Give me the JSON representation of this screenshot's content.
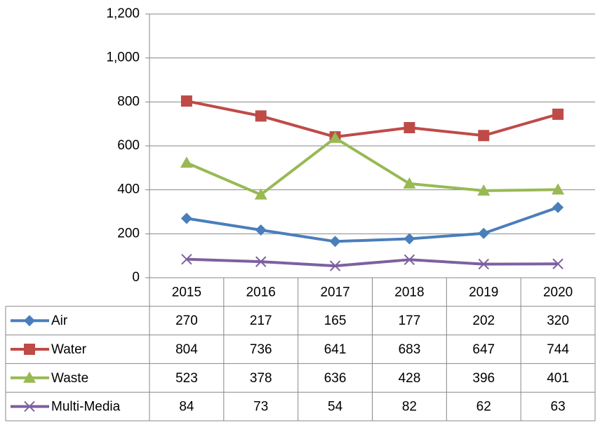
{
  "chart_data": {
    "type": "line",
    "categories": [
      "2015",
      "2016",
      "2017",
      "2018",
      "2019",
      "2020"
    ],
    "series": [
      {
        "name": "Air",
        "color": "#4a7ebb",
        "marker": "diamond",
        "values": [
          270,
          217,
          165,
          177,
          202,
          320
        ]
      },
      {
        "name": "Water",
        "color": "#be4b48",
        "marker": "square",
        "values": [
          804,
          736,
          641,
          683,
          647,
          744
        ]
      },
      {
        "name": "Waste",
        "color": "#98b954",
        "marker": "triangle",
        "values": [
          523,
          378,
          636,
          428,
          396,
          401
        ]
      },
      {
        "name": "Multi-Media",
        "color": "#7d60a0",
        "marker": "x",
        "values": [
          84,
          73,
          54,
          82,
          62,
          63
        ]
      }
    ],
    "ylim": [
      0,
      1200
    ],
    "yticks": [
      0,
      200,
      400,
      600,
      800,
      {
        "value": 1000,
        "label": "1,000"
      },
      {
        "value": 1200,
        "label": "1,200"
      }
    ],
    "grid": true,
    "data_table": true
  }
}
